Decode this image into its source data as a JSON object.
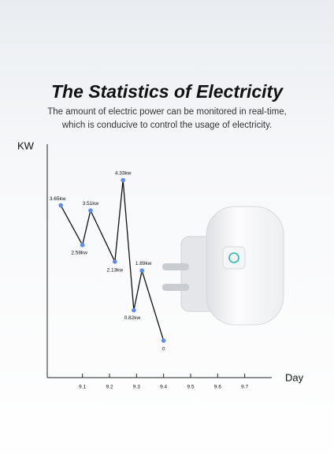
{
  "chart_data": {
    "type": "line",
    "title": "The Statistics of Electricity",
    "subtitle": "The amount of electric power can be monitored in real-time, which is conducive to control the usage of electricity.",
    "y_label": "KW",
    "x_label": "Day",
    "x": [
      9.02,
      9.1,
      9.13,
      9.22,
      9.25,
      9.29,
      9.32,
      9.4
    ],
    "series": [
      {
        "color": "#111111",
        "values": [
          3.65,
          2.58,
          3.51,
          2.13,
          4.33,
          0.82,
          1.89,
          0
        ],
        "value_labels": [
          "3.65kw",
          "2.58kw",
          "3.51kw",
          "2.13kw",
          "4.33kw",
          "0.82kw",
          "1.89kw",
          "0"
        ]
      }
    ],
    "marker_color": "#5b8def",
    "xlim": [
      8.97,
      9.8
    ],
    "ylim": [
      -1,
      5.3
    ],
    "xticks": [
      9.1,
      9.2,
      9.3,
      9.4,
      9.5,
      9.6,
      9.7
    ]
  }
}
